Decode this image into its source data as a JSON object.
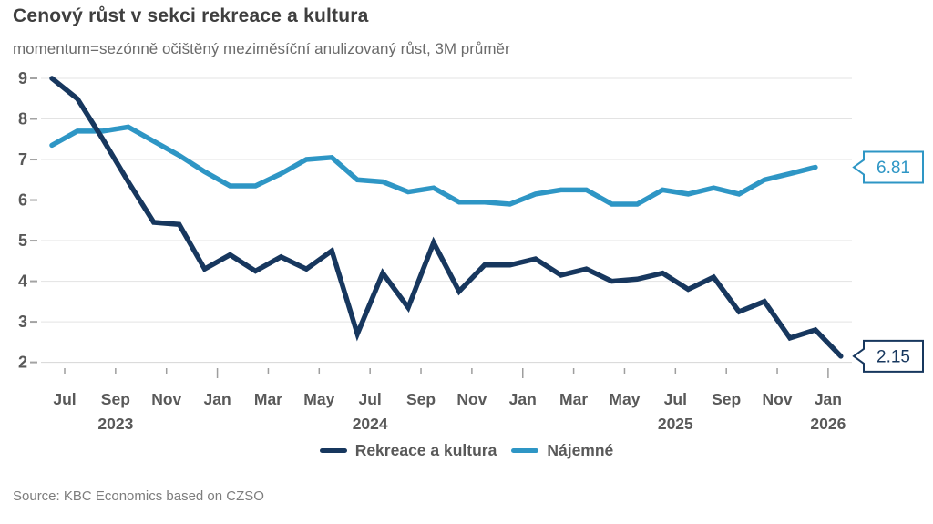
{
  "header": {
    "title": "Cenový růst v sekci rekreace a kultura",
    "subtitle": "momentum=sezónně očištěný meziměsíční anulizovaný růst, 3M průměr"
  },
  "footer": {
    "source": "Source: KBC Economics based on CZSO"
  },
  "legend": {
    "position": "bottom",
    "items": [
      {
        "label": "Rekreace a kultura",
        "color": "#17375e"
      },
      {
        "label": "Nájemné",
        "color": "#2e96c5"
      }
    ]
  },
  "chart_data": {
    "type": "line",
    "title": "Cenový růst v sekci rekreace a kultura",
    "subtitle": "momentum=sezónně očištěný meziměsíční anulizovaný růst, 3M průměr",
    "xlabel": "",
    "ylabel": "",
    "ylim": [
      2,
      9
    ],
    "yticks": [
      9,
      8,
      7,
      6,
      5,
      4,
      3,
      2
    ],
    "grid": true,
    "legend_position": "bottom",
    "categories": [
      "2023-06",
      "2023-07",
      "2023-08",
      "2023-09",
      "2023-10",
      "2023-11",
      "2023-12",
      "2024-01",
      "2024-02",
      "2024-03",
      "2024-04",
      "2024-05",
      "2024-06",
      "2024-07",
      "2024-08",
      "2024-09",
      "2024-10",
      "2024-11",
      "2024-12",
      "2025-01",
      "2025-02",
      "2025-03",
      "2025-04",
      "2025-05",
      "2025-06",
      "2025-07",
      "2025-08",
      "2025-09",
      "2025-10",
      "2025-11",
      "2025-12",
      "2026-01"
    ],
    "x_tick_labels": [
      "Jul",
      "Sep",
      "Nov",
      "Jan",
      "Mar",
      "May",
      "Jul",
      "Sep",
      "Nov",
      "Jan",
      "Mar",
      "May",
      "Jul",
      "Sep",
      "Nov",
      "Jan"
    ],
    "x_years": [
      {
        "label": "2023",
        "tick": 1
      },
      {
        "label": "2024",
        "tick": 6
      },
      {
        "label": "2025",
        "tick": 12
      },
      {
        "label": "2026",
        "tick": 15
      }
    ],
    "series": [
      {
        "name": "Rekreace a kultura",
        "color": "#17375e",
        "end_label": "2.15",
        "values": [
          9.0,
          8.5,
          7.5,
          6.45,
          5.45,
          5.4,
          4.3,
          4.65,
          4.25,
          4.6,
          4.3,
          4.75,
          2.7,
          4.2,
          3.35,
          4.95,
          3.75,
          4.4,
          4.4,
          4.55,
          4.15,
          4.3,
          4.0,
          4.05,
          4.2,
          3.8,
          4.1,
          3.25,
          3.5,
          2.6,
          2.8,
          2.15
        ]
      },
      {
        "name": "Nájemné",
        "color": "#2e96c5",
        "end_label": "6.81",
        "values": [
          7.35,
          7.7,
          7.7,
          7.8,
          7.45,
          7.1,
          6.7,
          6.35,
          6.35,
          6.65,
          7.0,
          7.05,
          6.5,
          6.45,
          6.2,
          6.3,
          5.95,
          5.95,
          5.9,
          6.15,
          6.25,
          6.25,
          5.9,
          5.9,
          6.25,
          6.15,
          6.3,
          6.15,
          6.5,
          6.65,
          6.81,
          null
        ]
      }
    ]
  }
}
